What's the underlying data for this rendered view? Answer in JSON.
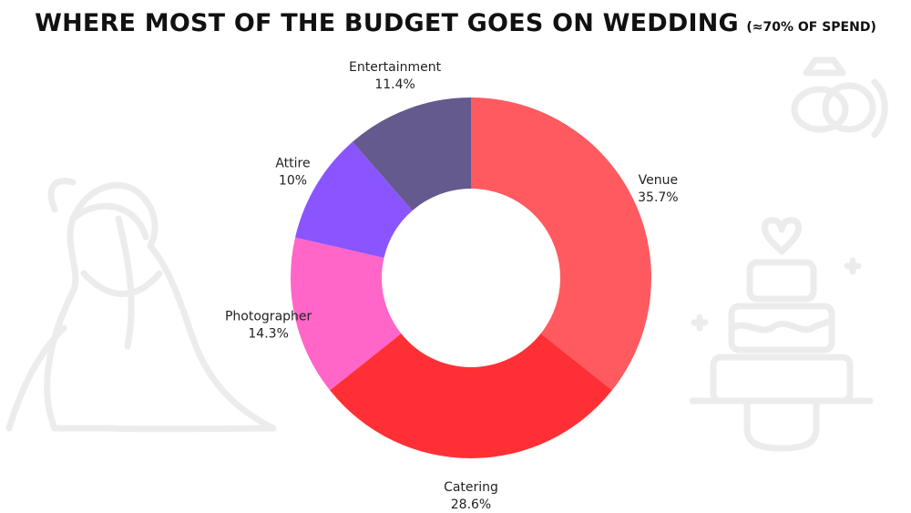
{
  "title": {
    "main": "WHERE MOST OF THE BUDGET GOES ON WEDDING",
    "sub": "(≈70% OF SPEND)"
  },
  "decorations": [
    {
      "icon": "wedding-rings-icon"
    },
    {
      "icon": "bride-groom-icon"
    },
    {
      "icon": "wedding-cake-icon"
    }
  ],
  "chart_data": {
    "type": "pie",
    "donut": true,
    "title": "WHERE MOST OF THE BUDGET GOES ON WEDDING",
    "subtitle": "(≈70% OF SPEND)",
    "slices": [
      {
        "label": "Venue",
        "value": 35.7,
        "value_label": "35.7%",
        "color": "#ff5a5f"
      },
      {
        "label": "Catering",
        "value": 28.6,
        "value_label": "28.6%",
        "color": "#ff3035"
      },
      {
        "label": "Photographer",
        "value": 14.3,
        "value_label": "14.3%",
        "color": "#ff66c8"
      },
      {
        "label": "Attire",
        "value": 10,
        "value_label": "10%",
        "color": "#8a55ff"
      },
      {
        "label": "Entertainment",
        "value": 11.4,
        "value_label": "11.4%",
        "color": "#655a8e"
      }
    ]
  }
}
